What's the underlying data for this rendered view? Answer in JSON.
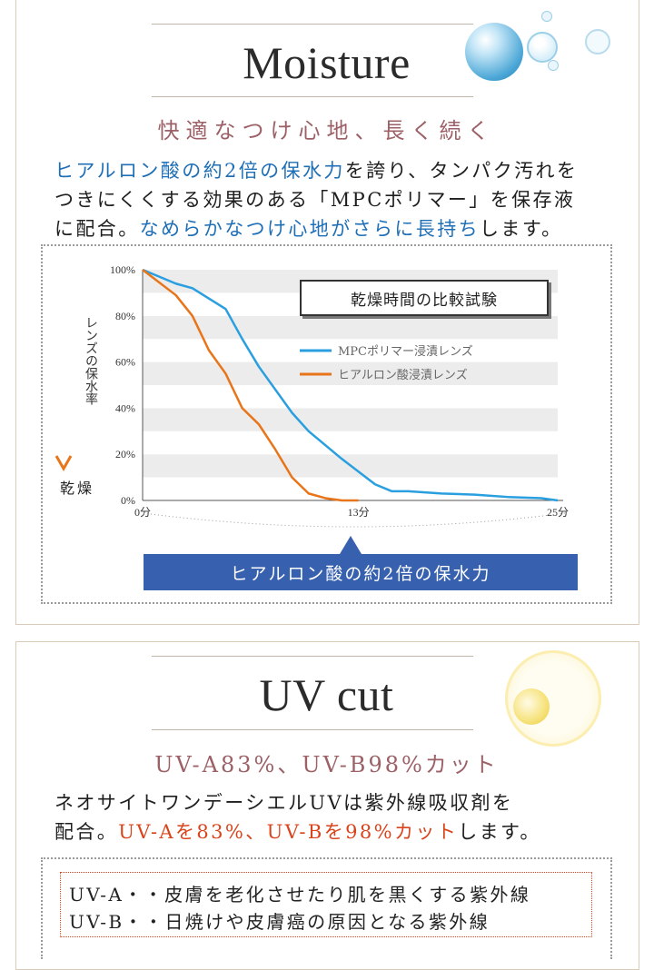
{
  "moisture": {
    "title": "Moisture",
    "subtitle": "快適なつけ心地、長く続く",
    "paragraph": {
      "line1_blue": "ヒアルロン酸の約2倍の保水力",
      "line1_rest": "を誇り、タンパク汚れを",
      "line2": "つきにくくする効果のある「MPCポリマー」を保存液",
      "line3_pre": "に配合。",
      "line3_blue": "なめらかなつけ心地がさらに長持ち",
      "line3_post": "します。"
    },
    "chart_title": "乾燥時間の比較試験",
    "y_axis_label": "レンズの保水率",
    "dry_label": "乾燥",
    "callout": "ヒアルロン酸の約2倍の保水力"
  },
  "chart_data": {
    "type": "line",
    "title": "乾燥時間の比較試験",
    "ylabel": "レンズの保水率",
    "xlim": [
      0,
      25
    ],
    "ylim": [
      0,
      100
    ],
    "x_ticks": [
      {
        "value": 0,
        "label": "0分"
      },
      {
        "value": 13,
        "label": "13分"
      },
      {
        "value": 25,
        "label": "25分"
      }
    ],
    "y_ticks": [
      {
        "value": 100,
        "label": "100%"
      },
      {
        "value": 80,
        "label": "80%"
      },
      {
        "value": 60,
        "label": "60%"
      },
      {
        "value": 40,
        "label": "40%"
      },
      {
        "value": 20,
        "label": "20%"
      },
      {
        "value": 0,
        "label": "0%"
      }
    ],
    "series": [
      {
        "name": "MPCポリマー浸漬レンズ",
        "color": "#2a9fe0",
        "x": [
          0,
          2,
          3,
          5,
          6,
          7,
          9,
          10,
          12,
          14,
          15,
          16,
          18,
          20,
          22,
          24,
          25
        ],
        "y": [
          100,
          94,
          92,
          83,
          70,
          58,
          38,
          30,
          18,
          7,
          4,
          4,
          3,
          2.5,
          1.5,
          1,
          0
        ]
      },
      {
        "name": "ヒアルロン酸浸漬レンズ",
        "color": "#e8751a",
        "x": [
          0,
          2,
          3,
          4,
          5,
          6,
          7,
          8,
          9,
          10,
          11,
          12,
          13
        ],
        "y": [
          100,
          89,
          80,
          65,
          55,
          40,
          33,
          22,
          10,
          3,
          1,
          0,
          0
        ]
      }
    ],
    "legend": "top-right",
    "grid": "alternating bands"
  },
  "uv": {
    "title": "UV cut",
    "subtitle": "UV-A83%、UV-B98%カット",
    "line1": "ネオサイトワンデーシエルUVは紫外線吸収剤を",
    "line2_pre": "配合。",
    "line2_red": "UV-Aを83%、UV-Bを98%カット",
    "line2_post": "します。",
    "list": [
      "UV-A・・皮膚を老化させたり肌を黒くする紫外線",
      "UV-B・・日焼けや皮膚癌の原因となる紫外線"
    ]
  },
  "colors": {
    "accent_blue": "#1f6fb6",
    "accent_red": "#d9441c",
    "subtitle_rose": "#9c6167",
    "callout_bg": "#3760ae"
  }
}
